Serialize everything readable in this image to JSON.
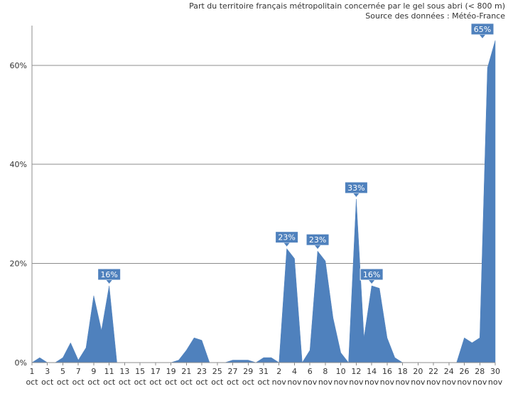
{
  "header": {
    "title": "Part du territoire français métropolitain concernée par le gel sous abri (< 800 m)",
    "source": "Source des données : Météo-France"
  },
  "chart_data": {
    "type": "area",
    "title": "Part du territoire français métropolitain concernée par le gel sous abri (< 800 m)",
    "subtitle": "Source des données : Météo-France",
    "xlabel": "",
    "ylabel": "",
    "ylim": [
      0,
      68
    ],
    "yticks": [
      0,
      20,
      40,
      60
    ],
    "ytick_suffix": "%",
    "grid": true,
    "legend": "none",
    "color": "#4f81bd",
    "x": [
      "1 oct",
      "2 oct",
      "3 oct",
      "4 oct",
      "5 oct",
      "6 oct",
      "7 oct",
      "8 oct",
      "9 oct",
      "10 oct",
      "11 oct",
      "12 oct",
      "13 oct",
      "14 oct",
      "15 oct",
      "16 oct",
      "17 oct",
      "18 oct",
      "19 oct",
      "20 oct",
      "21 oct",
      "22 oct",
      "23 oct",
      "24 oct",
      "25 oct",
      "26 oct",
      "27 oct",
      "28 oct",
      "29 oct",
      "30 oct",
      "31 oct",
      "1 nov",
      "2 nov",
      "3 nov",
      "4 nov",
      "5 nov",
      "6 nov",
      "7 nov",
      "8 nov",
      "9 nov",
      "10 nov",
      "11 nov",
      "12 nov",
      "13 nov",
      "14 nov",
      "15 nov",
      "16 nov",
      "17 nov",
      "18 nov",
      "19 nov",
      "20 nov",
      "21 nov",
      "22 nov",
      "23 nov",
      "24 nov",
      "25 nov",
      "26 nov",
      "27 nov",
      "28 nov",
      "29 nov",
      "30 nov"
    ],
    "tick_labels": [
      {
        "day": "1",
        "month": "oct"
      },
      {
        "day": "3",
        "month": "oct"
      },
      {
        "day": "5",
        "month": "oct"
      },
      {
        "day": "7",
        "month": "oct"
      },
      {
        "day": "9",
        "month": "oct"
      },
      {
        "day": "11",
        "month": "oct"
      },
      {
        "day": "13",
        "month": "oct"
      },
      {
        "day": "15",
        "month": "oct"
      },
      {
        "day": "17",
        "month": "oct"
      },
      {
        "day": "19",
        "month": "oct"
      },
      {
        "day": "21",
        "month": "oct"
      },
      {
        "day": "23",
        "month": "oct"
      },
      {
        "day": "25",
        "month": "oct"
      },
      {
        "day": "27",
        "month": "oct"
      },
      {
        "day": "29",
        "month": "oct"
      },
      {
        "day": "31",
        "month": "oct"
      },
      {
        "day": "2",
        "month": "nov"
      },
      {
        "day": "4",
        "month": "nov"
      },
      {
        "day": "6",
        "month": "nov"
      },
      {
        "day": "8",
        "month": "nov"
      },
      {
        "day": "10",
        "month": "nov"
      },
      {
        "day": "12",
        "month": "nov"
      },
      {
        "day": "14",
        "month": "nov"
      },
      {
        "day": "16",
        "month": "nov"
      },
      {
        "day": "18",
        "month": "nov"
      },
      {
        "day": "20",
        "month": "nov"
      },
      {
        "day": "22",
        "month": "nov"
      },
      {
        "day": "24",
        "month": "nov"
      },
      {
        "day": "26",
        "month": "nov"
      },
      {
        "day": "28",
        "month": "nov"
      },
      {
        "day": "30",
        "month": "nov"
      }
    ],
    "values": [
      0,
      1,
      0,
      0,
      1,
      4,
      0.5,
      3,
      13.5,
      6.5,
      15.5,
      0,
      0,
      0,
      0,
      0,
      0,
      0,
      0,
      0.5,
      2.5,
      5,
      4.5,
      0,
      0,
      0,
      0.5,
      0.5,
      0.5,
      0,
      1,
      1,
      0,
      23,
      21,
      0,
      2.5,
      22.5,
      20.5,
      9,
      2,
      0,
      33,
      5,
      15.5,
      15,
      5,
      1,
      0,
      0,
      0,
      0,
      0,
      0,
      0,
      0,
      5,
      4,
      5,
      59.5,
      65
    ],
    "labels": [
      {
        "index": 10,
        "text": "16%"
      },
      {
        "index": 33,
        "text": "23%"
      },
      {
        "index": 37,
        "text": "23%"
      },
      {
        "index": 42,
        "text": "33%"
      },
      {
        "index": 44,
        "text": "16%"
      },
      {
        "index": 60,
        "text": "65%"
      }
    ]
  }
}
